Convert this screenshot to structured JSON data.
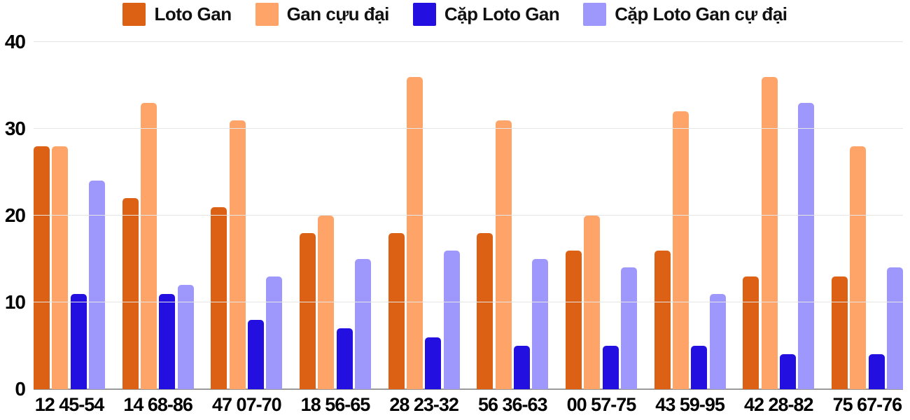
{
  "chart_data": {
    "type": "bar",
    "title": "",
    "xlabel": "",
    "ylabel": "",
    "categories": [
      "12 45-54",
      "14 68-86",
      "47 07-70",
      "18 56-65",
      "28 23-32",
      "56 36-63",
      "00 57-75",
      "43 59-95",
      "42 28-82",
      "75 67-76"
    ],
    "series": [
      {
        "name": "Loto Gan",
        "color": "#dd6114",
        "values": [
          28,
          22,
          21,
          18,
          18,
          18,
          16,
          16,
          13,
          13
        ]
      },
      {
        "name": "Gan cựu đại",
        "color": "#ffa469",
        "values": [
          28,
          33,
          31,
          20,
          36,
          31,
          20,
          32,
          36,
          28
        ]
      },
      {
        "name": "Cặp Loto Gan",
        "color": "#2310e0",
        "values": [
          11,
          11,
          8,
          7,
          6,
          5,
          5,
          5,
          4,
          4
        ]
      },
      {
        "name": "Cặp Loto Gan cự đại",
        "color": "#9e97fc",
        "values": [
          24,
          12,
          13,
          15,
          16,
          15,
          14,
          11,
          33,
          14
        ]
      }
    ],
    "ylim": [
      0,
      40
    ],
    "yticks": [
      0,
      10,
      20,
      30,
      40
    ],
    "grid": true,
    "legend_position": "top",
    "colors": {
      "gridline": "#e6e6e6",
      "baseline": "#9a9a9a",
      "text": "#000000"
    }
  }
}
